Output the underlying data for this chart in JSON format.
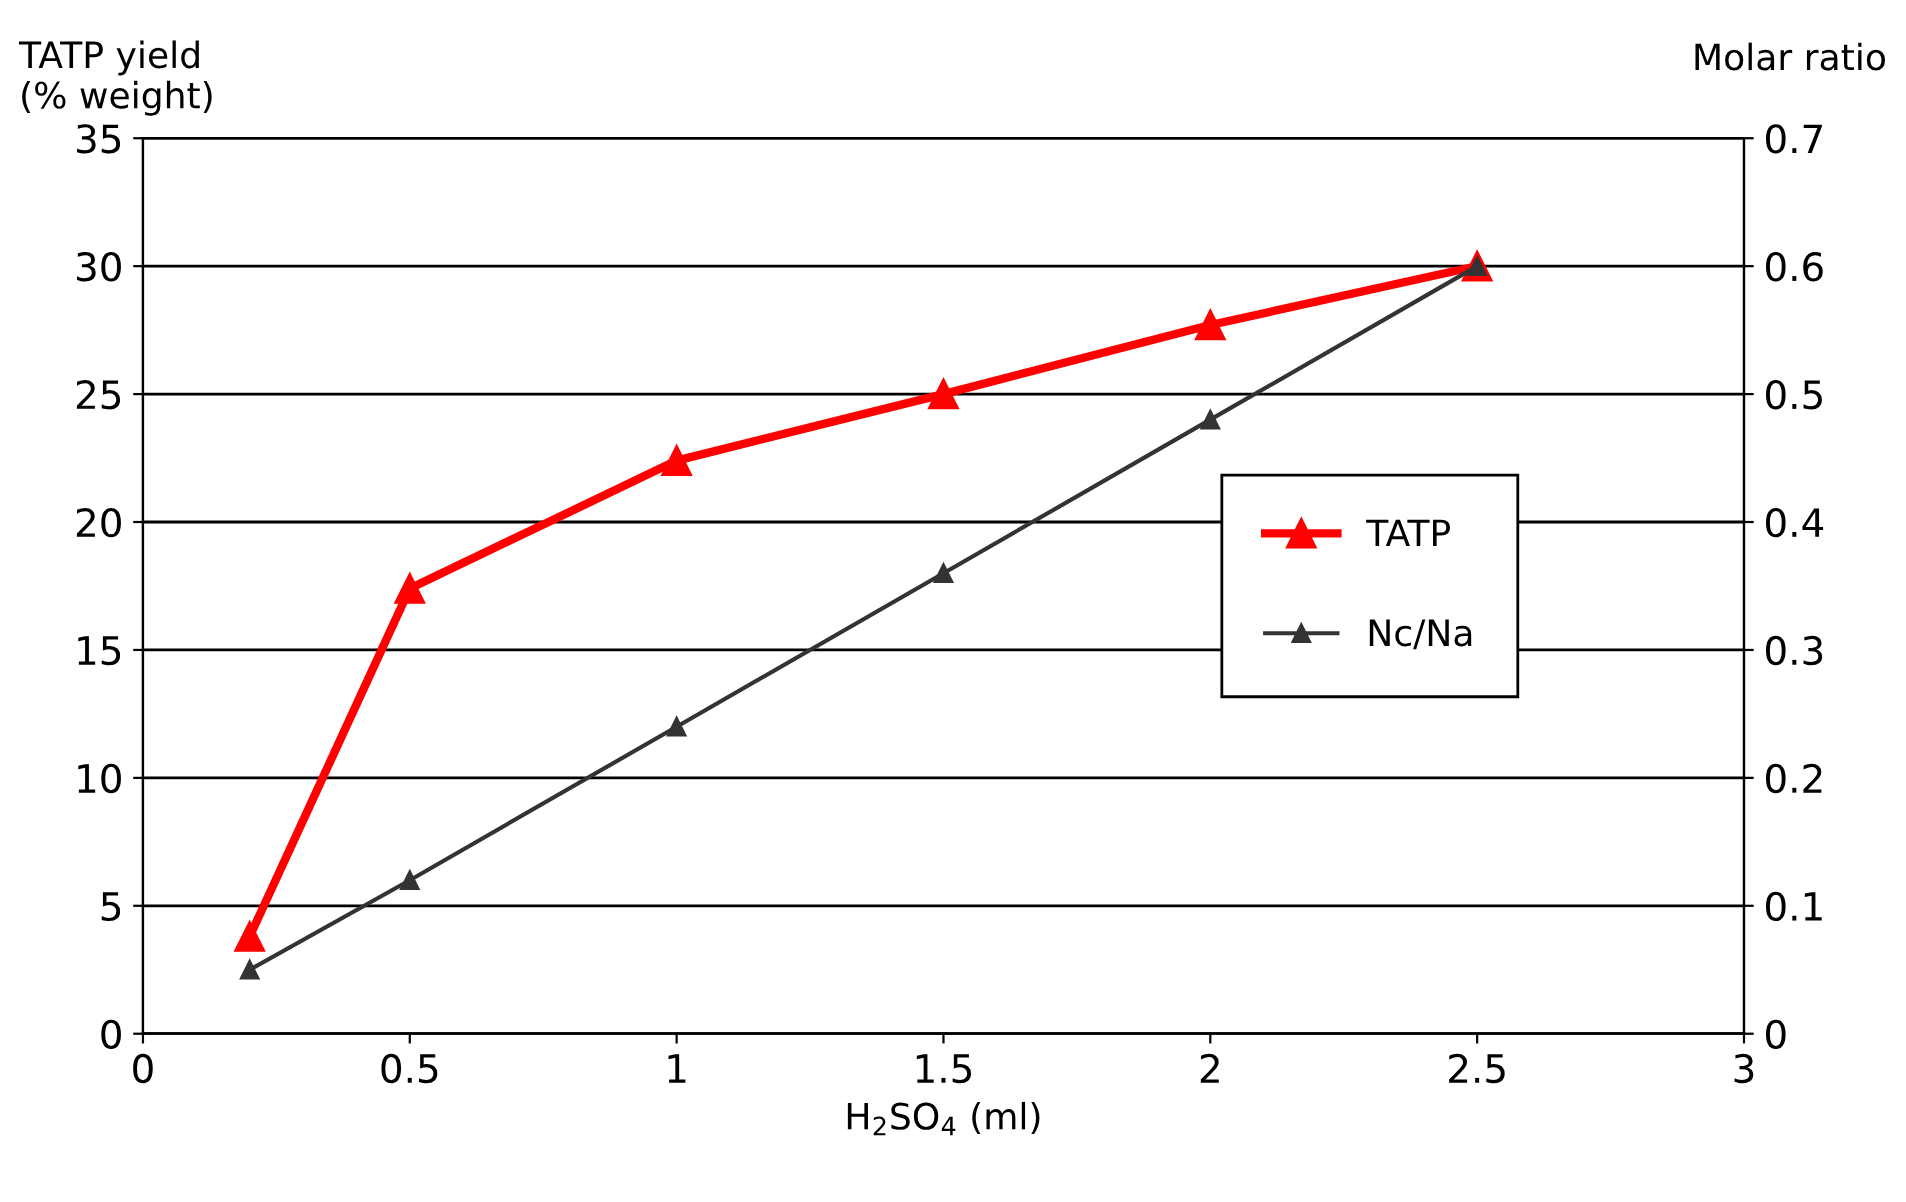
{
  "chart_data": {
    "type": "line",
    "x": [
      0.2,
      0.5,
      1,
      1.5,
      2,
      2.5
    ],
    "xlabel": "H$_{2}$SO$_{4}$ (ml)",
    "ylabel": "TATP yield\n(% weight)",
    "y2label": "Molar ratio",
    "series": [
      {
        "name": "TATP",
        "color": "#ff0000",
        "values": [
          3.8,
          17.4,
          22.4,
          25.0,
          27.7,
          30.0
        ]
      },
      {
        "name": "Nc/Na",
        "color": "#333333",
        "axis": "y2",
        "values": [
          0.05,
          0.12,
          0.24,
          0.36,
          0.48,
          0.6
        ]
      }
    ],
    "xlim": [
      0,
      3
    ],
    "xticks": [
      0,
      0.5,
      1,
      1.5,
      2,
      2.5,
      3
    ],
    "ylim": [
      0,
      35
    ],
    "yticks": [
      0,
      5,
      10,
      15,
      20,
      25,
      30,
      35
    ],
    "y2lim": [
      0,
      0.7
    ],
    "y2ticks": [
      0,
      0.1,
      0.2,
      0.3,
      0.4,
      0.5,
      0.6,
      0.7
    ],
    "grid": "y",
    "legend": "right",
    "marker": "triangle"
  }
}
